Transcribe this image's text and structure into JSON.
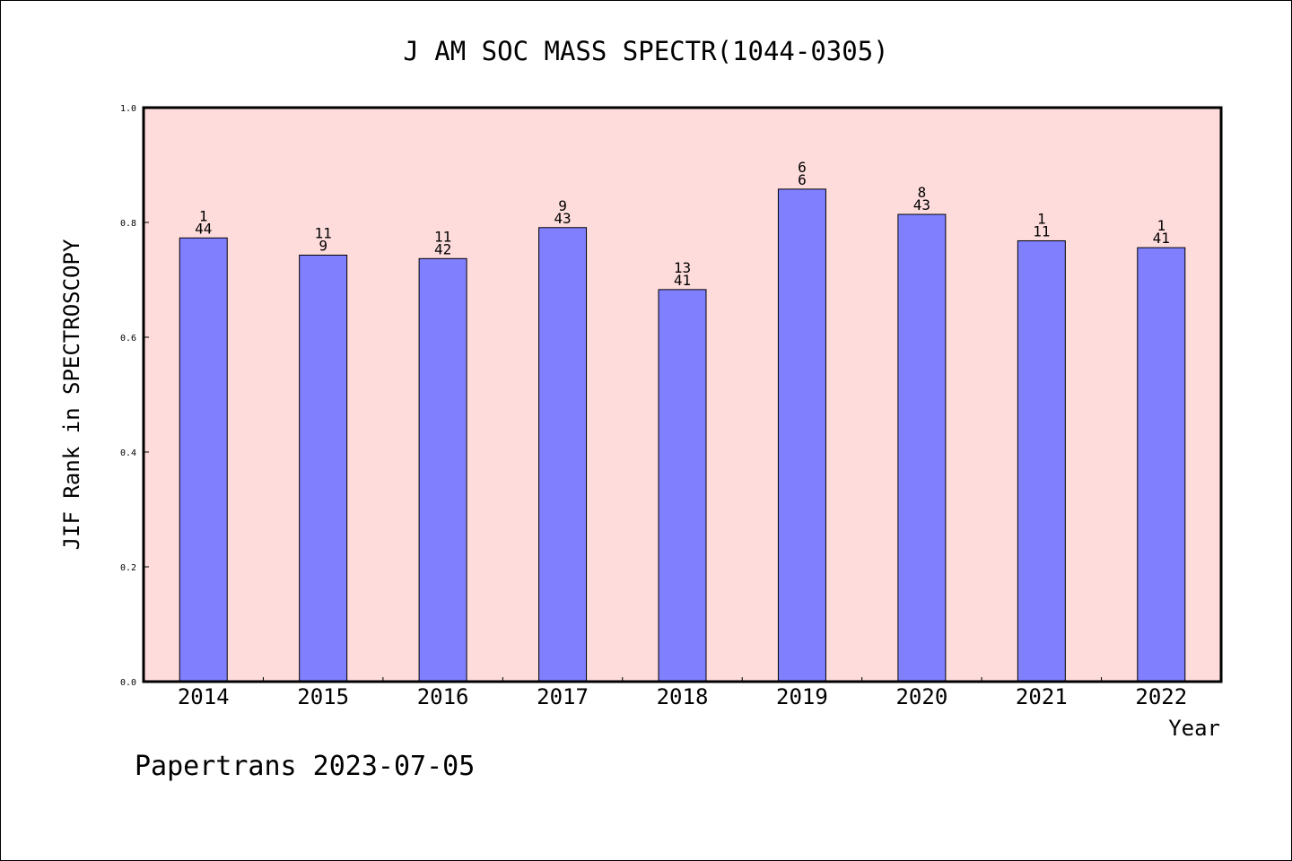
{
  "chart_data": {
    "type": "bar",
    "title": "J AM SOC MASS SPECTR(1044-0305)",
    "xlabel": "Year",
    "ylabel": "JIF Rank in SPECTROSCOPY",
    "ylim": [
      0,
      1.0
    ],
    "yticks": [
      "0.0",
      "0.2",
      "0.4",
      "0.6",
      "0.8",
      "1.0"
    ],
    "categories": [
      "2014",
      "2015",
      "2016",
      "2017",
      "2018",
      "2019",
      "2020",
      "2021",
      "2022"
    ],
    "values": [
      0.773,
      0.743,
      0.737,
      0.791,
      0.683,
      0.858,
      0.814,
      0.768,
      0.756
    ],
    "bar_labels_top": [
      "1",
      "11",
      "11",
      "9",
      "13",
      "6",
      "8",
      "1",
      "1"
    ],
    "bar_labels_bottom": [
      "44",
      "9",
      "42",
      "43",
      "41",
      "6",
      "43",
      "11",
      "41"
    ],
    "grid": false,
    "colors": {
      "bar": "#8080ff",
      "plot_background": "#ffdcdc",
      "axes": "#000000"
    }
  },
  "footer": {
    "text": "Papertrans 2023-07-05"
  }
}
